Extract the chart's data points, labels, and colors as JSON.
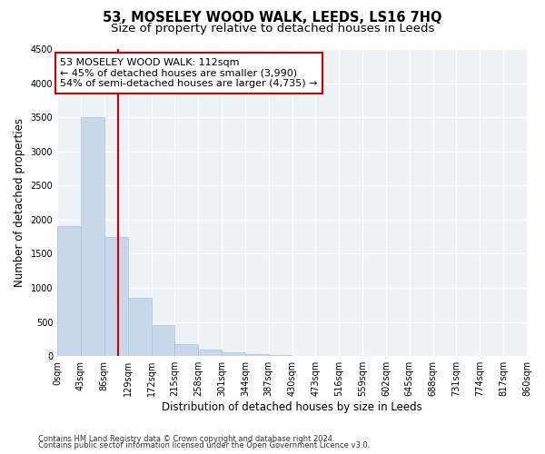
{
  "title": "53, MOSELEY WOOD WALK, LEEDS, LS16 7HQ",
  "subtitle": "Size of property relative to detached houses in Leeds",
  "xlabel": "Distribution of detached houses by size in Leeds",
  "ylabel": "Number of detached properties",
  "bar_color": "#c8d8ea",
  "bar_edge_color": "#aac0d8",
  "bin_edges": [
    0,
    43,
    86,
    129,
    172,
    215,
    258,
    301,
    344,
    387,
    430,
    473,
    516,
    559,
    602,
    645,
    688,
    731,
    774,
    817,
    860
  ],
  "bar_heights": [
    1900,
    3500,
    1750,
    850,
    450,
    175,
    100,
    60,
    35,
    18,
    8,
    4,
    2,
    1,
    0,
    0,
    0,
    0,
    0,
    0
  ],
  "red_line_x": 112,
  "annotation_line1": "53 MOSELEY WOOD WALK: 112sqm",
  "annotation_line2": "← 45% of detached houses are smaller (3,990)",
  "annotation_line3": "54% of semi-detached houses are larger (4,735) →",
  "annotation_box_color": "white",
  "annotation_box_edge_color": "#cc0000",
  "ylim": [
    0,
    4500
  ],
  "yticks": [
    0,
    500,
    1000,
    1500,
    2000,
    2500,
    3000,
    3500,
    4000,
    4500
  ],
  "footer_line1": "Contains HM Land Registry data © Crown copyright and database right 2024.",
  "footer_line2": "Contains public sector information licensed under the Open Government Licence v3.0.",
  "background_color": "#edf2f7",
  "grid_color": "white",
  "title_fontsize": 10.5,
  "subtitle_fontsize": 9.5,
  "tick_fontsize": 7,
  "label_fontsize": 8.5,
  "annotation_fontsize": 8,
  "footer_fontsize": 6
}
